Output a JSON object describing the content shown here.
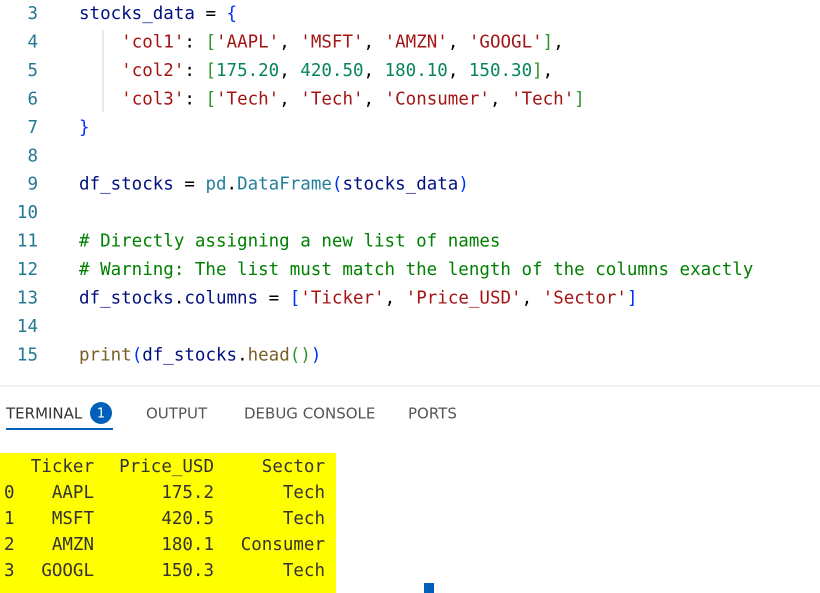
{
  "editor": {
    "lines": [
      {
        "number": 3,
        "tokens": [
          [
            "stocks_data",
            "#001080"
          ],
          [
            " = ",
            "#000000"
          ],
          [
            "{",
            "#0431fa"
          ]
        ]
      },
      {
        "number": 4,
        "tokens": [
          [
            "    ",
            "#000000"
          ],
          [
            "'col1'",
            "#a31515"
          ],
          [
            ": ",
            "#000000"
          ],
          [
            "[",
            "#319331"
          ],
          [
            "'AAPL'",
            "#a31515"
          ],
          [
            ", ",
            "#000000"
          ],
          [
            "'MSFT'",
            "#a31515"
          ],
          [
            ", ",
            "#000000"
          ],
          [
            "'AMZN'",
            "#a31515"
          ],
          [
            ", ",
            "#000000"
          ],
          [
            "'GOOGL'",
            "#a31515"
          ],
          [
            "]",
            "#319331"
          ],
          [
            ",",
            "#000000"
          ]
        ]
      },
      {
        "number": 5,
        "tokens": [
          [
            "    ",
            "#000000"
          ],
          [
            "'col2'",
            "#a31515"
          ],
          [
            ": ",
            "#000000"
          ],
          [
            "[",
            "#319331"
          ],
          [
            "175.20",
            "#098658"
          ],
          [
            ", ",
            "#000000"
          ],
          [
            "420.50",
            "#098658"
          ],
          [
            ", ",
            "#000000"
          ],
          [
            "180.10",
            "#098658"
          ],
          [
            ", ",
            "#000000"
          ],
          [
            "150.30",
            "#098658"
          ],
          [
            "]",
            "#319331"
          ],
          [
            ",",
            "#000000"
          ]
        ]
      },
      {
        "number": 6,
        "tokens": [
          [
            "    ",
            "#000000"
          ],
          [
            "'col3'",
            "#a31515"
          ],
          [
            ": ",
            "#000000"
          ],
          [
            "[",
            "#319331"
          ],
          [
            "'Tech'",
            "#a31515"
          ],
          [
            ", ",
            "#000000"
          ],
          [
            "'Tech'",
            "#a31515"
          ],
          [
            ", ",
            "#000000"
          ],
          [
            "'Consumer'",
            "#a31515"
          ],
          [
            ", ",
            "#000000"
          ],
          [
            "'Tech'",
            "#a31515"
          ],
          [
            "]",
            "#319331"
          ]
        ]
      },
      {
        "number": 7,
        "tokens": [
          [
            "}",
            "#0431fa"
          ]
        ]
      },
      {
        "number": 8,
        "tokens": []
      },
      {
        "number": 9,
        "tokens": [
          [
            "df_stocks",
            "#001080"
          ],
          [
            " = ",
            "#000000"
          ],
          [
            "pd",
            "#267f99"
          ],
          [
            ".",
            "#000000"
          ],
          [
            "DataFrame",
            "#267f99"
          ],
          [
            "(",
            "#0431fa"
          ],
          [
            "stocks_data",
            "#001080"
          ],
          [
            ")",
            "#0431fa"
          ]
        ]
      },
      {
        "number": 10,
        "tokens": []
      },
      {
        "number": 11,
        "tokens": [
          [
            "# Directly assigning a new list of names",
            "#008000"
          ]
        ]
      },
      {
        "number": 12,
        "tokens": [
          [
            "# Warning: The list must match the length of the columns exactly",
            "#008000"
          ]
        ]
      },
      {
        "number": 13,
        "tokens": [
          [
            "df_stocks",
            "#001080"
          ],
          [
            ".",
            "#000000"
          ],
          [
            "columns",
            "#001080"
          ],
          [
            " = ",
            "#000000"
          ],
          [
            "[",
            "#0431fa"
          ],
          [
            "'Ticker'",
            "#a31515"
          ],
          [
            ", ",
            "#000000"
          ],
          [
            "'Price_USD'",
            "#a31515"
          ],
          [
            ", ",
            "#000000"
          ],
          [
            "'Sector'",
            "#a31515"
          ],
          [
            "]",
            "#0431fa"
          ]
        ]
      },
      {
        "number": 14,
        "tokens": []
      },
      {
        "number": 15,
        "tokens": [
          [
            "print",
            "#795e26"
          ],
          [
            "(",
            "#0431fa"
          ],
          [
            "df_stocks",
            "#001080"
          ],
          [
            ".",
            "#000000"
          ],
          [
            "head",
            "#795e26"
          ],
          [
            "(",
            "#319331"
          ],
          [
            ")",
            "#319331"
          ],
          [
            ")",
            "#0431fa"
          ]
        ]
      }
    ]
  },
  "panel": {
    "tabs": [
      "TERMINAL",
      "OUTPUT",
      "DEBUG CONSOLE",
      "PORTS"
    ],
    "badge": 1
  },
  "terminal": {
    "header": [
      "Ticker",
      "Price_USD",
      "Sector"
    ],
    "rows": [
      [
        0,
        "AAPL",
        175.2,
        "Tech"
      ],
      [
        1,
        "MSFT",
        420.5,
        "Tech"
      ],
      [
        2,
        "AMZN",
        180.1,
        "Consumer"
      ],
      [
        3,
        "GOOGL",
        150.3,
        "Tech"
      ]
    ]
  }
}
